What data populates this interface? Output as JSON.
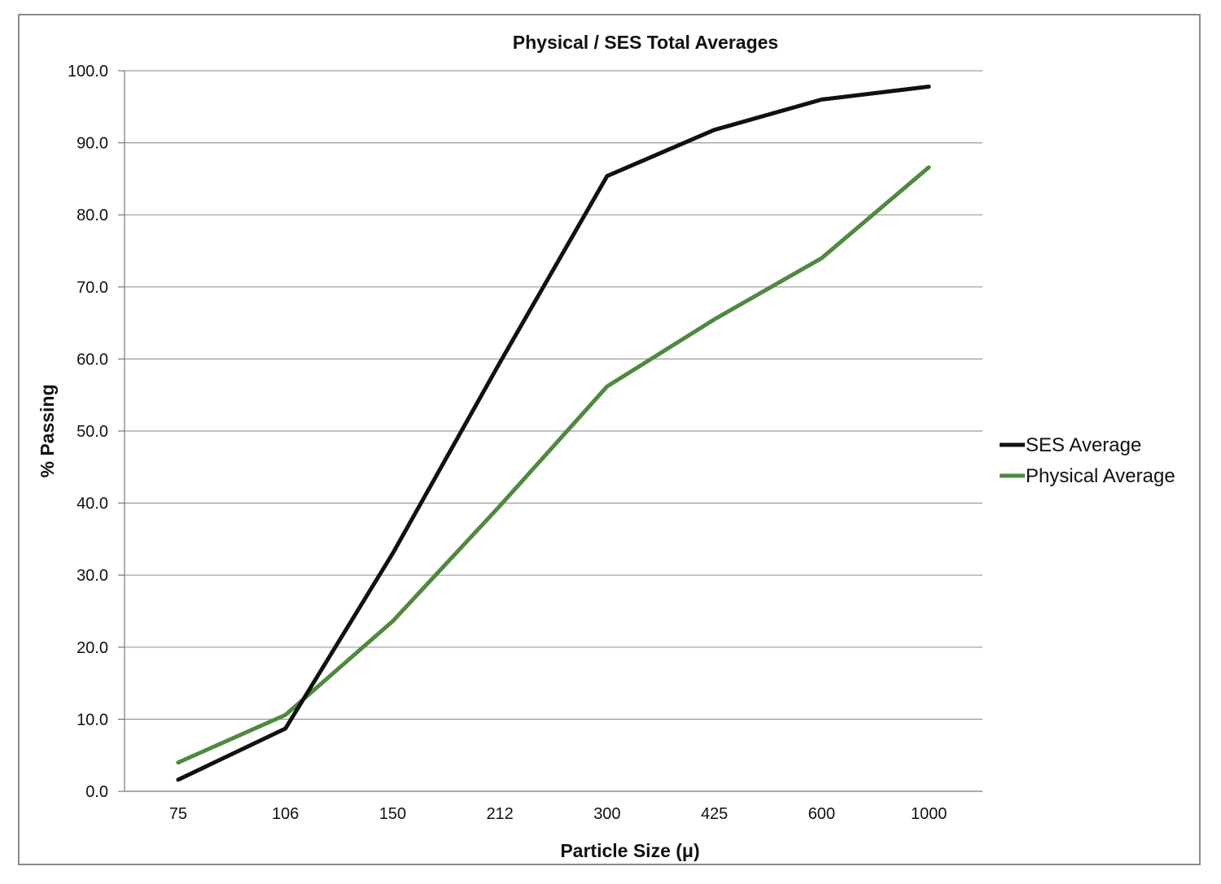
{
  "chart_data": {
    "type": "line",
    "title": "Physical / SES Total Averages",
    "xlabel": "Particle Size (μ)",
    "ylabel": "% Passing",
    "categories": [
      "75",
      "106",
      "150",
      "212",
      "300",
      "425",
      "600",
      "1000"
    ],
    "ylim": [
      0,
      100
    ],
    "yticks": [
      "0.0",
      "10.0",
      "20.0",
      "30.0",
      "40.0",
      "50.0",
      "60.0",
      "70.0",
      "80.0",
      "90.0",
      "100.0"
    ],
    "grid": true,
    "legend_position": "right",
    "series": [
      {
        "name": "SES Average",
        "color": "#111111",
        "values": [
          1.6,
          8.7,
          33.0,
          59.5,
          85.4,
          91.8,
          96.0,
          97.8
        ]
      },
      {
        "name": "Physical Average",
        "color": "#4e8a3e",
        "values": [
          4.0,
          10.6,
          23.6,
          39.6,
          56.2,
          65.5,
          74.0,
          86.6
        ]
      }
    ]
  }
}
